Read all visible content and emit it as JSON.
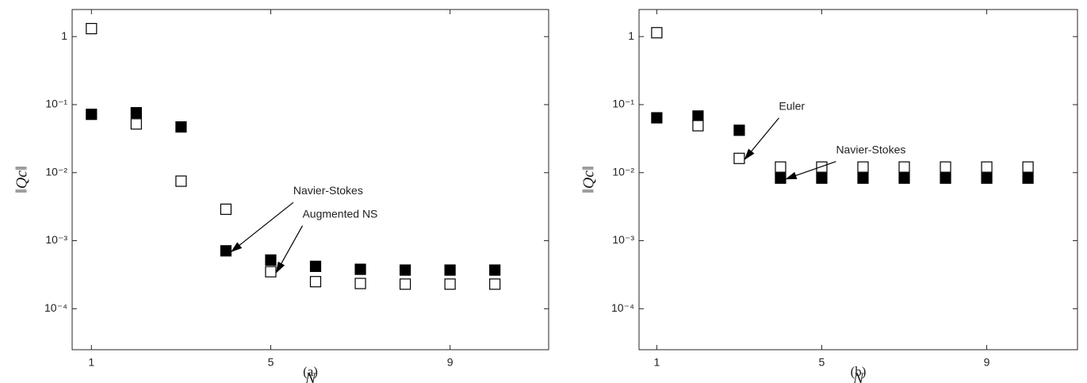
{
  "chart_data": [
    {
      "type": "scatter",
      "caption": "(a)",
      "x_label": "N",
      "y_label": "‖Qc‖",
      "log_y": true,
      "x": [
        1,
        2,
        3,
        4,
        5,
        6,
        7,
        8,
        9,
        10
      ],
      "xlim": [
        0.57,
        11.2
      ],
      "ylim": [
        2.5e-05,
        2.5
      ],
      "xticks": [
        1,
        5,
        9
      ],
      "yticks": [
        {
          "value": 0.0001,
          "label": "10⁻⁴"
        },
        {
          "value": 0.001,
          "label": "10⁻³"
        },
        {
          "value": 0.01,
          "label": "10⁻²"
        },
        {
          "value": 0.1,
          "label": "10⁻¹"
        },
        1
      ],
      "series": [
        {
          "color": "#000000",
          "marker": "filled-square",
          "values": [
            0.072,
            0.076,
            0.047,
            0.00071,
            0.00052,
            0.00042,
            0.00038,
            0.00037,
            0.00037,
            0.00037
          ]
        },
        {
          "color": "#000000",
          "marker": "open-square",
          "values": [
            1.31,
            0.052,
            0.0075,
            0.0029,
            0.00035,
            0.00025,
            0.000235,
            0.00023,
            0.00023,
            0.00023
          ]
        }
      ],
      "annotations": [
        {
          "text": "Navier-Stokes",
          "series": 0,
          "point": 3
        },
        {
          "text": "Augmented NS",
          "series": 1,
          "point": 4
        }
      ]
    },
    {
      "type": "scatter",
      "caption": "(b)",
      "x_label": "N",
      "y_label": "‖Qc‖",
      "log_y": true,
      "x": [
        1,
        2,
        3,
        4,
        5,
        6,
        7,
        8,
        9,
        10
      ],
      "xlim": [
        0.57,
        11.2
      ],
      "ylim": [
        2.5e-05,
        2.5
      ],
      "xticks": [
        1,
        5,
        9
      ],
      "yticks": [
        {
          "value": 0.0001,
          "label": "10⁻⁴"
        },
        {
          "value": 0.001,
          "label": "10⁻³"
        },
        {
          "value": 0.01,
          "label": "10⁻²"
        },
        {
          "value": 0.1,
          "label": "10⁻¹"
        },
        1
      ],
      "series": [
        {
          "color": "#000000",
          "marker": "filled-square",
          "values": [
            0.064,
            0.068,
            0.042,
            0.0083,
            0.0083,
            0.0083,
            0.0083,
            0.0083,
            0.0083,
            0.0083
          ]
        },
        {
          "color": "#000000",
          "marker": "open-square",
          "values": [
            1.14,
            0.049,
            0.0162,
            0.0121,
            0.0121,
            0.0121,
            0.0121,
            0.0121,
            0.0121,
            0.0121
          ]
        }
      ],
      "annotations": [
        {
          "text": "Euler",
          "series": 1,
          "point": 2
        },
        {
          "text": "Navier-Stokes",
          "series": 0,
          "point": 3
        }
      ]
    }
  ]
}
